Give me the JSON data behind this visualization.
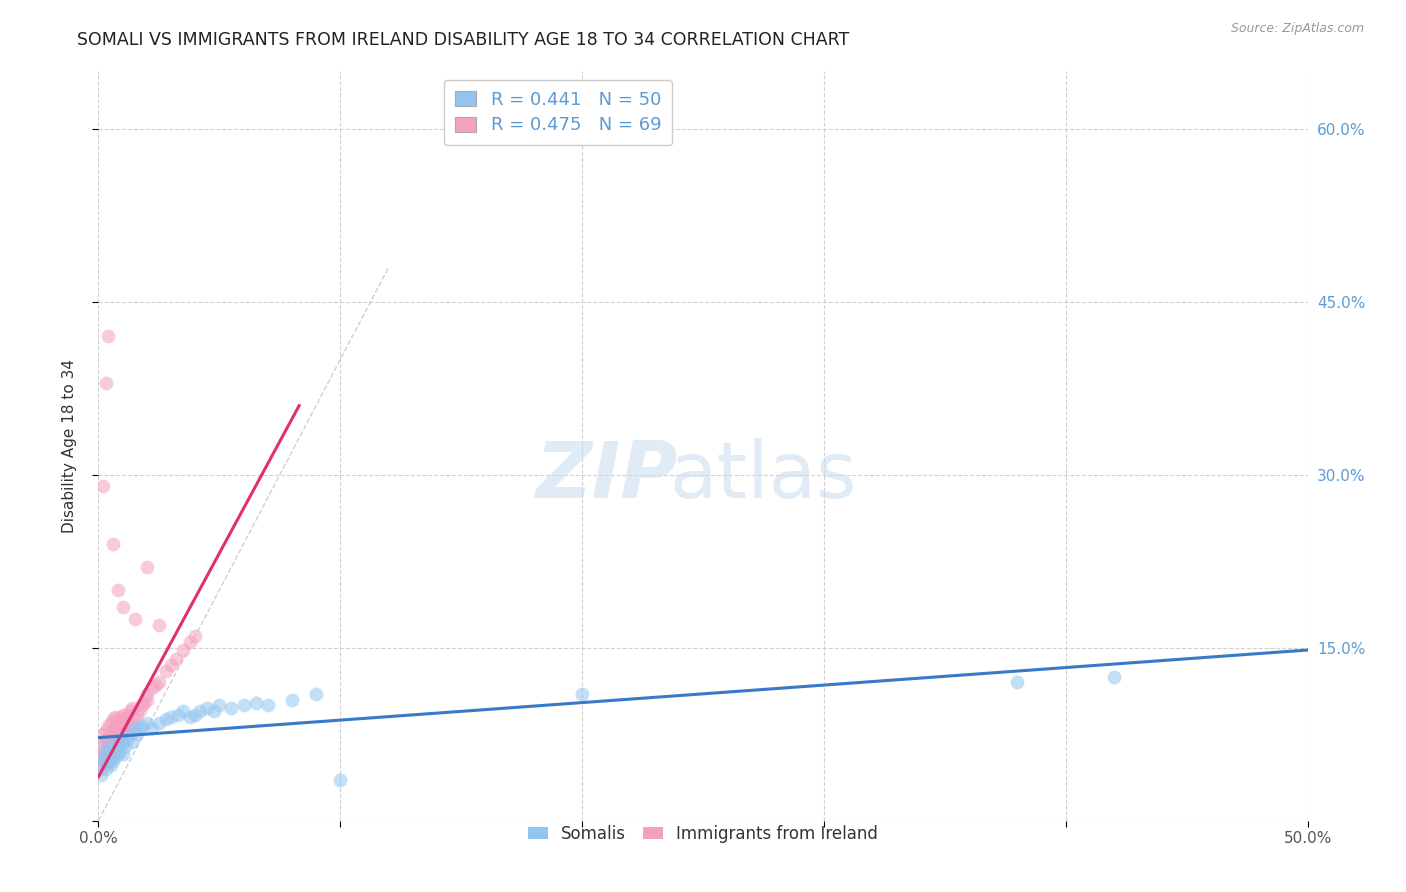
{
  "title": "SOMALI VS IMMIGRANTS FROM IRELAND DISABILITY AGE 18 TO 34 CORRELATION CHART",
  "source": "Source: ZipAtlas.com",
  "ylabel": "Disability Age 18 to 34",
  "xlim": [
    0.0,
    0.5
  ],
  "ylim": [
    0.0,
    0.65
  ],
  "xticks": [
    0.0,
    0.1,
    0.2,
    0.3,
    0.4,
    0.5
  ],
  "yticks": [
    0.0,
    0.15,
    0.3,
    0.45,
    0.6
  ],
  "xtick_labels": [
    "0.0%",
    "",
    "",
    "",
    "",
    "50.0%"
  ],
  "right_ytick_labels": [
    "60.0%",
    "45.0%",
    "30.0%",
    "15.0%"
  ],
  "right_ytick_values": [
    0.6,
    0.45,
    0.3,
    0.15
  ],
  "legend_blue_r": "R = 0.441",
  "legend_blue_n": "N = 50",
  "legend_pink_r": "R = 0.475",
  "legend_pink_n": "N = 69",
  "blue_color": "#92C5F0",
  "pink_color": "#F4A0C0",
  "blue_line_color": "#3A78C9",
  "pink_line_color": "#E03070",
  "background_color": "#FFFFFF",
  "grid_color": "#CCCCCC",
  "title_fontsize": 12.5,
  "axis_label_fontsize": 11,
  "tick_fontsize": 11,
  "legend_fontsize": 13,
  "watermark_fontsize": 56,
  "blue_scatter_x": [
    0.001,
    0.002,
    0.002,
    0.003,
    0.003,
    0.004,
    0.004,
    0.005,
    0.005,
    0.006,
    0.006,
    0.007,
    0.007,
    0.008,
    0.008,
    0.009,
    0.009,
    0.01,
    0.01,
    0.011,
    0.012,
    0.013,
    0.014,
    0.015,
    0.016,
    0.017,
    0.018,
    0.02,
    0.022,
    0.025,
    0.028,
    0.03,
    0.033,
    0.035,
    0.038,
    0.04,
    0.042,
    0.045,
    0.048,
    0.05,
    0.055,
    0.06,
    0.065,
    0.07,
    0.08,
    0.09,
    0.2,
    0.38,
    0.42,
    0.1
  ],
  "blue_scatter_y": [
    0.04,
    0.05,
    0.055,
    0.045,
    0.06,
    0.05,
    0.065,
    0.048,
    0.058,
    0.052,
    0.06,
    0.055,
    0.065,
    0.058,
    0.068,
    0.06,
    0.07,
    0.058,
    0.068,
    0.065,
    0.07,
    0.075,
    0.068,
    0.08,
    0.075,
    0.08,
    0.082,
    0.085,
    0.08,
    0.085,
    0.088,
    0.09,
    0.092,
    0.095,
    0.09,
    0.092,
    0.095,
    0.098,
    0.095,
    0.1,
    0.098,
    0.1,
    0.102,
    0.1,
    0.105,
    0.11,
    0.11,
    0.12,
    0.125,
    0.035
  ],
  "pink_scatter_x": [
    0.001,
    0.001,
    0.001,
    0.002,
    0.002,
    0.002,
    0.002,
    0.003,
    0.003,
    0.003,
    0.003,
    0.004,
    0.004,
    0.004,
    0.004,
    0.005,
    0.005,
    0.005,
    0.005,
    0.006,
    0.006,
    0.006,
    0.006,
    0.007,
    0.007,
    0.007,
    0.007,
    0.008,
    0.008,
    0.008,
    0.009,
    0.009,
    0.009,
    0.01,
    0.01,
    0.01,
    0.011,
    0.011,
    0.012,
    0.012,
    0.013,
    0.013,
    0.014,
    0.014,
    0.015,
    0.016,
    0.017,
    0.018,
    0.019,
    0.02,
    0.02,
    0.022,
    0.024,
    0.025,
    0.028,
    0.03,
    0.032,
    0.035,
    0.038,
    0.04,
    0.002,
    0.003,
    0.004,
    0.006,
    0.008,
    0.01,
    0.015,
    0.02,
    0.025
  ],
  "pink_scatter_y": [
    0.045,
    0.055,
    0.065,
    0.048,
    0.058,
    0.068,
    0.075,
    0.05,
    0.06,
    0.07,
    0.078,
    0.052,
    0.062,
    0.072,
    0.082,
    0.055,
    0.065,
    0.075,
    0.085,
    0.058,
    0.068,
    0.078,
    0.088,
    0.06,
    0.07,
    0.08,
    0.09,
    0.065,
    0.075,
    0.085,
    0.068,
    0.08,
    0.09,
    0.072,
    0.082,
    0.092,
    0.075,
    0.088,
    0.078,
    0.092,
    0.082,
    0.095,
    0.085,
    0.098,
    0.088,
    0.092,
    0.096,
    0.1,
    0.102,
    0.105,
    0.11,
    0.115,
    0.118,
    0.12,
    0.13,
    0.135,
    0.14,
    0.148,
    0.155,
    0.16,
    0.29,
    0.38,
    0.42,
    0.24,
    0.2,
    0.185,
    0.175,
    0.22,
    0.17
  ],
  "blue_trend_x": [
    0.0,
    0.5
  ],
  "blue_trend_y": [
    0.072,
    0.148
  ],
  "pink_trend_x": [
    0.0,
    0.083
  ],
  "pink_trend_y": [
    0.038,
    0.36
  ],
  "diag_line_x": [
    0.0,
    0.12
  ],
  "diag_line_y": [
    0.0,
    0.48
  ]
}
